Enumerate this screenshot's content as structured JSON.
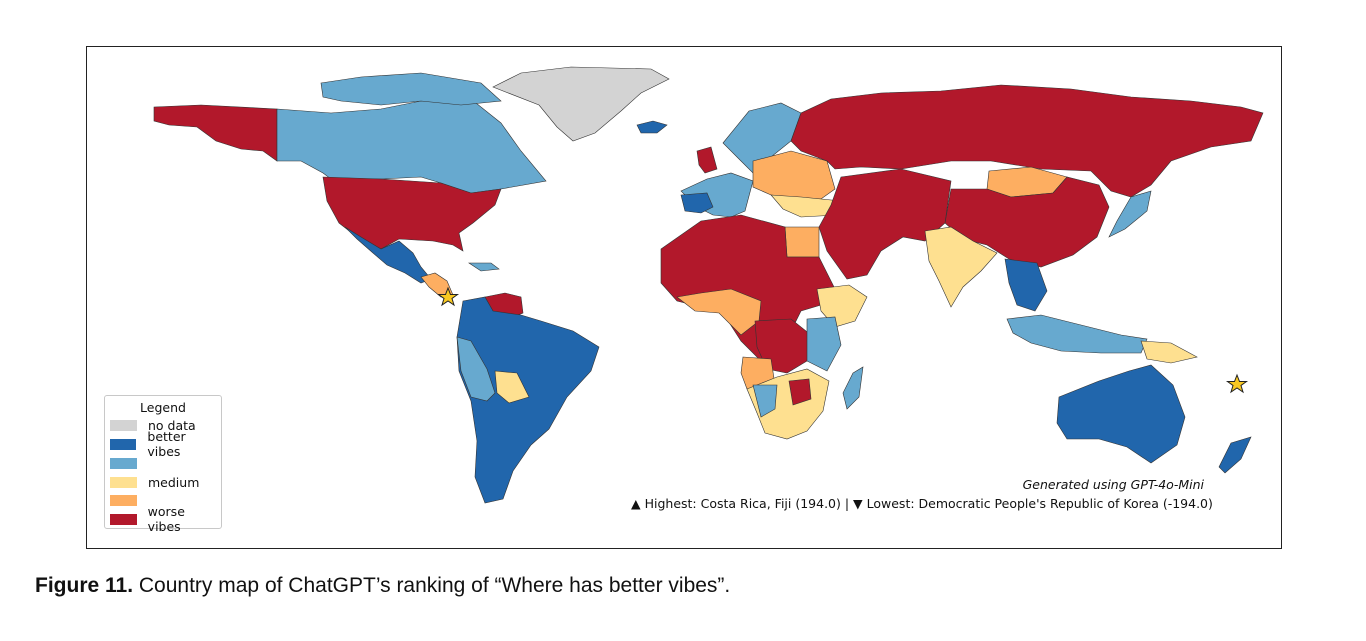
{
  "colors": {
    "no_data": "#d3d3d3",
    "better": "#2166ac",
    "good": "#67a9cf",
    "medium": "#fee090",
    "poor": "#fdae61",
    "worse": "#b2182b",
    "star": "#f9c922"
  },
  "legend": {
    "title": "Legend",
    "items": [
      {
        "label": "no data",
        "color_key": "no_data"
      },
      {
        "label": "better vibes",
        "color_key": "better"
      },
      {
        "label": "",
        "color_key": "good"
      },
      {
        "label": "medium",
        "color_key": "medium"
      },
      {
        "label": "",
        "color_key": "poor"
      },
      {
        "label": "worse vibes",
        "color_key": "worse"
      }
    ]
  },
  "notes": {
    "generated": "Generated using GPT-4o-Mini",
    "extremes": "▲ Highest: Costa Rica, Fiji (194.0) | ▼ Lowest: Democratic People's Republic of Korea (-194.0)"
  },
  "caption": {
    "label": "Figure 11.",
    "text": "Country map of ChatGPT’s ranking of “Where has better vibes”."
  },
  "highlight_icon": "star-icon"
}
